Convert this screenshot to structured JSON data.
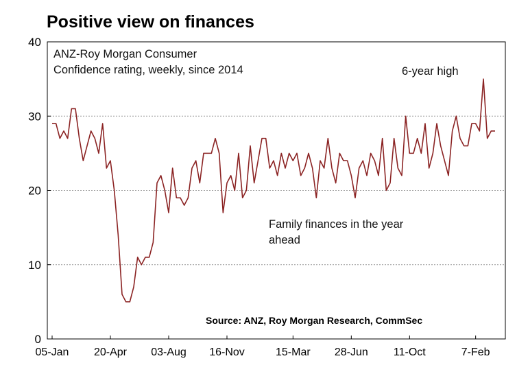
{
  "chart_data": {
    "type": "line",
    "title": "Positive view on finances",
    "subtitle_lines": [
      "ANZ-Roy Morgan Consumer",
      "Confidence rating, weekly, since 2014"
    ],
    "annotations": {
      "peak": "6-year high",
      "series_label_lines": [
        "Family finances in the year",
        "ahead"
      ]
    },
    "source": "Source: ANZ, Roy Morgan Research, CommSec",
    "ylim": [
      0,
      40
    ],
    "y_ticks": [
      0,
      10,
      20,
      30,
      40
    ],
    "x_tick_labels": [
      "05-Jan",
      "20-Apr",
      "03-Aug",
      "16-Nov",
      "15-Mar",
      "28-Jun",
      "11-Oct",
      "7-Feb"
    ],
    "x_tick_index": [
      0,
      15,
      30,
      45,
      62,
      77,
      92,
      109
    ],
    "grid": true,
    "line_color": "#8b2323",
    "series": [
      {
        "values": [
          29,
          29,
          27,
          28,
          27,
          31,
          31,
          27,
          24,
          26,
          28,
          27,
          25,
          29,
          23,
          24,
          20,
          14,
          6,
          5,
          5,
          7,
          11,
          10,
          11,
          11,
          13,
          21,
          22,
          20,
          17,
          23,
          19,
          19,
          18,
          19,
          23,
          24,
          21,
          25,
          25,
          25,
          27,
          25,
          17,
          21,
          22,
          20,
          25,
          19,
          20,
          26,
          21,
          24,
          27,
          27,
          23,
          24,
          22,
          25,
          23,
          25,
          24,
          25,
          22,
          23,
          25,
          23,
          19,
          24,
          23,
          27,
          23,
          21,
          25,
          24,
          24,
          22,
          19,
          23,
          24,
          22,
          25,
          24,
          22,
          27,
          20,
          21,
          27,
          23,
          22,
          30,
          25,
          25,
          27,
          25,
          29,
          23,
          25,
          29,
          26,
          24,
          22,
          28,
          30,
          27,
          26,
          26,
          29,
          29,
          28,
          35,
          27,
          28,
          28
        ]
      }
    ]
  }
}
